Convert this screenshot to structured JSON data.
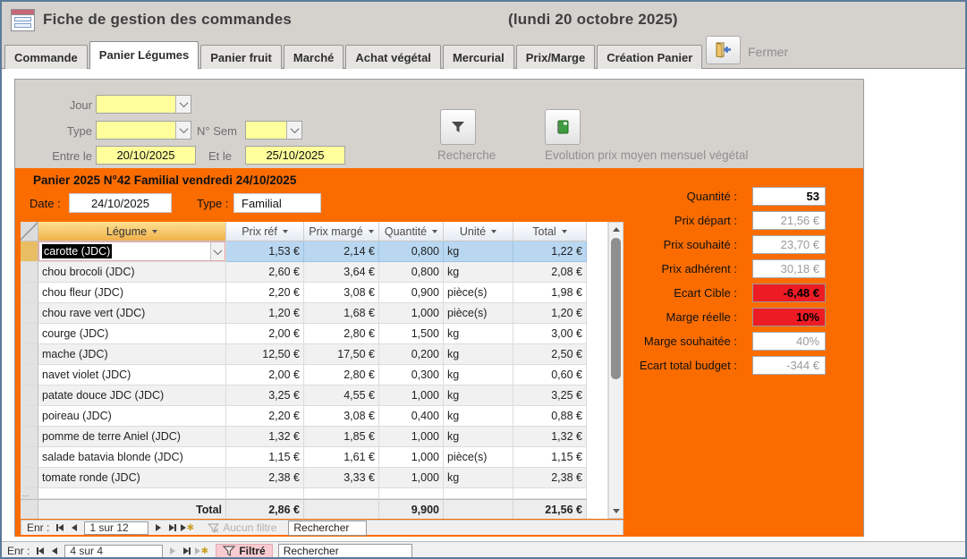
{
  "header": {
    "title": "Fiche de gestion des commandes",
    "date": "(lundi 20 octobre 2025)"
  },
  "icons": {
    "app": "form-icon",
    "close": "exit-door-icon",
    "recherche": "funnel-icon",
    "evolution": "green-notebook-icon",
    "filtered": "funnel-icon",
    "no_filter": "crossed-funnel-icon"
  },
  "tabs": [
    {
      "label": "Commande",
      "active": false
    },
    {
      "label": "Panier Légumes",
      "active": true
    },
    {
      "label": "Panier fruit",
      "active": false
    },
    {
      "label": "Marché",
      "active": false
    },
    {
      "label": "Achat végétal",
      "active": false
    },
    {
      "label": "Mercurial",
      "active": false
    },
    {
      "label": "Prix/Marge",
      "active": false
    },
    {
      "label": "Création Panier",
      "active": false
    }
  ],
  "close_button": {
    "label": "Fermer"
  },
  "filters": {
    "jour_label": "Jour",
    "type_label": "Type",
    "sem_label": "N° Sem",
    "entre_label": "Entre le",
    "entre_value": "20/10/2025",
    "et_label": "Et le",
    "et_value": "25/10/2025",
    "recherche_label": "Recherche",
    "evolution_label": "Evolution prix moyen mensuel végétal"
  },
  "panier": {
    "title": "Panier 2025 N°42 Familial vendredi 24/10/2025",
    "date_label": "Date :",
    "date_value": "24/10/2025",
    "type_label": "Type :",
    "type_value": "Familial",
    "table": {
      "columns": [
        "Légume",
        "Prix réf",
        "Prix margé",
        "Quantité",
        "Unité",
        "Total"
      ],
      "selected_row": 0,
      "rows": [
        [
          "carotte (JDC)",
          "1,53 €",
          "2,14 €",
          "0,800",
          "kg",
          "1,22 €"
        ],
        [
          "chou brocoli (JDC)",
          "2,60 €",
          "3,64 €",
          "0,800",
          "kg",
          "2,08 €"
        ],
        [
          "chou fleur (JDC)",
          "2,20 €",
          "3,08 €",
          "0,900",
          "pièce(s)",
          "1,98 €"
        ],
        [
          "chou rave vert (JDC)",
          "1,20 €",
          "1,68 €",
          "1,000",
          "pièce(s)",
          "1,20 €"
        ],
        [
          "courge (JDC)",
          "2,00 €",
          "2,80 €",
          "1,500",
          "kg",
          "3,00 €"
        ],
        [
          "mache (JDC)",
          "12,50 €",
          "17,50 €",
          "0,200",
          "kg",
          "2,50 €"
        ],
        [
          "navet violet (JDC)",
          "2,00 €",
          "2,80 €",
          "0,300",
          "kg",
          "0,60 €"
        ],
        [
          "patate douce JDC (JDC)",
          "3,25 €",
          "4,55 €",
          "1,000",
          "kg",
          "3,25 €"
        ],
        [
          "poireau (JDC)",
          "2,20 €",
          "3,08 €",
          "0,400",
          "kg",
          "0,88 €"
        ],
        [
          "pomme de terre Aniel (JDC)",
          "1,32 €",
          "1,85 €",
          "1,000",
          "kg",
          "1,32 €"
        ],
        [
          "salade batavia blonde (JDC)",
          "1,15 €",
          "1,61 €",
          "1,000",
          "pièce(s)",
          "1,15 €"
        ],
        [
          "tomate ronde (JDC)",
          "2,38 €",
          "3,33 €",
          "1,000",
          "kg",
          "2,38 €"
        ]
      ],
      "new_row_marker": "...",
      "total": {
        "label": "Total",
        "prix_ref": "2,86 €",
        "quantite": "9,900",
        "total": "21,56 €"
      }
    },
    "summary": [
      {
        "label": "Quantité :",
        "value": "53",
        "style": "bold-black"
      },
      {
        "label": "Prix départ :",
        "value": "21,56 €",
        "style": "gray"
      },
      {
        "label": "Prix souhaité :",
        "value": "23,70 €",
        "style": "gray"
      },
      {
        "label": "Prix adhérent :",
        "value": "30,18 €",
        "style": "gray"
      },
      {
        "label": "Ecart Cible :",
        "value": "-6,48 €",
        "style": "red"
      },
      {
        "label": "Marge réelle :",
        "value": "10%",
        "style": "red"
      },
      {
        "label": "Marge souhaitée :",
        "value": "40%",
        "style": "gray"
      },
      {
        "label": "Ecart total budget :",
        "value": "-344 €",
        "style": "gray"
      }
    ],
    "nav": {
      "label": "Enr :",
      "position": "1 sur 12",
      "filter_label": "Aucun filtre",
      "search_label": "Rechercher"
    }
  },
  "outer_nav": {
    "label": "Enr :",
    "position": "4 sur 4",
    "filter_label": "Filtré",
    "search_label": "Rechercher"
  },
  "colors": {
    "orange": "#fa6c00",
    "field_yellow": "#ffff9c",
    "selected_row_blue": "#b9d7f1",
    "alert_red": "#ed1c24",
    "header_gold": "#f0b04a"
  }
}
